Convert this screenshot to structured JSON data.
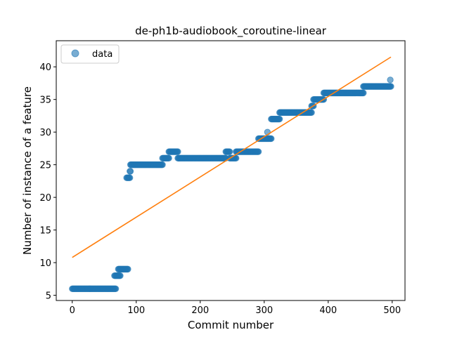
{
  "chart_data": {
    "type": "scatter",
    "title": "de-ph1b-audiobook_coroutine-linear",
    "xlabel": "Commit number",
    "ylabel": "Number of instance of a feature",
    "xlim": [
      -25,
      520
    ],
    "ylim": [
      4.2,
      44
    ],
    "xticks": [
      0,
      100,
      200,
      300,
      400,
      500
    ],
    "yticks": [
      5,
      10,
      15,
      20,
      25,
      30,
      35,
      40
    ],
    "legend": {
      "position": "top-left",
      "entries": [
        "data"
      ]
    },
    "grid": false,
    "colors": {
      "data": "#1f77b4",
      "fit": "#ff7f0e"
    },
    "series": [
      {
        "name": "data",
        "kind": "scatter",
        "segments": [
          {
            "x_start": 0,
            "x_end": 68,
            "y": 6
          },
          {
            "x_start": 66,
            "x_end": 75,
            "y": 8
          },
          {
            "x_start": 72,
            "x_end": 87,
            "y": 9
          },
          {
            "x_start": 85,
            "x_end": 90,
            "y": 23
          },
          {
            "x_start": 90,
            "x_end": 91,
            "y": 24
          },
          {
            "x_start": 91,
            "x_end": 141,
            "y": 25
          },
          {
            "x_start": 141,
            "x_end": 151,
            "y": 26
          },
          {
            "x_start": 151,
            "x_end": 165,
            "y": 27
          },
          {
            "x_start": 165,
            "x_end": 240,
            "y": 26
          },
          {
            "x_start": 240,
            "x_end": 246,
            "y": 27
          },
          {
            "x_start": 246,
            "x_end": 256,
            "y": 26
          },
          {
            "x_start": 256,
            "x_end": 291,
            "y": 27
          },
          {
            "x_start": 291,
            "x_end": 311,
            "y": 29
          },
          {
            "x_start": 311,
            "x_end": 324,
            "y": 32
          },
          {
            "x_start": 324,
            "x_end": 374,
            "y": 33
          },
          {
            "x_start": 374,
            "x_end": 377,
            "y": 34
          },
          {
            "x_start": 377,
            "x_end": 393,
            "y": 35
          },
          {
            "x_start": 393,
            "x_end": 455,
            "y": 36
          },
          {
            "x_start": 455,
            "x_end": 498,
            "y": 37
          }
        ],
        "outliers": [
          {
            "x": 305,
            "y": 30
          },
          {
            "x": 497,
            "y": 38
          }
        ]
      },
      {
        "name": "",
        "kind": "line",
        "x": [
          0,
          498
        ],
        "y": [
          10.8,
          41.5
        ]
      }
    ]
  }
}
